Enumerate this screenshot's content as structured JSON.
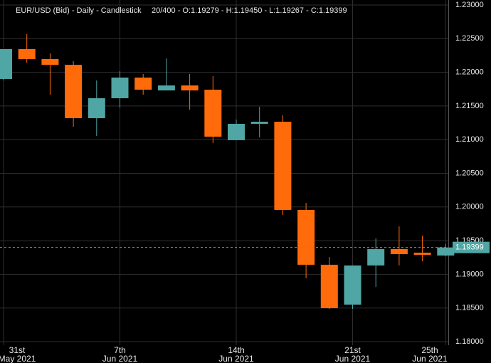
{
  "chart_data": {
    "type": "candlestick",
    "title": "EUR/USD (Bid) - Daily - Candlestick",
    "subtitle": "20/400 - O:1.19279 - H:1.19450 - L:1.19267 - C:1.19399",
    "categories": [
      "31st",
      null,
      null,
      null,
      null,
      "7th",
      null,
      null,
      null,
      null,
      "14th",
      null,
      null,
      null,
      null,
      "21st",
      null,
      null,
      null,
      "25th"
    ],
    "category_sublabels": [
      "May 2021",
      null,
      null,
      null,
      null,
      "Jun 2021",
      null,
      null,
      null,
      null,
      "Jun 2021",
      null,
      null,
      null,
      null,
      "Jun 2021",
      null,
      null,
      null,
      "Jun 2021"
    ],
    "open": [
      1.21901,
      1.22345,
      1.22197,
      1.22112,
      1.21319,
      1.21615,
      1.21922,
      1.21731,
      1.21805,
      1.21742,
      1.20992,
      1.21235,
      1.21266,
      1.19956,
      1.19142,
      1.1855,
      1.19131,
      1.19374,
      1.19321,
      1.19279
    ],
    "high": [
      1.22345,
      1.22567,
      1.22281,
      1.22165,
      1.21879,
      1.22017,
      1.21975,
      1.22207,
      1.21975,
      1.21943,
      1.21298,
      1.21488,
      1.21361,
      1.20061,
      1.19258,
      1.19131,
      1.19533,
      1.19712,
      1.19575,
      1.1945
    ],
    "low": [
      1.21879,
      1.22144,
      1.21668,
      1.21192,
      1.21055,
      1.21478,
      1.21668,
      1.21731,
      1.21446,
      1.20949,
      1.20992,
      1.21034,
      1.19882,
      1.18941,
      1.18486,
      1.18486,
      1.18814,
      1.19131,
      1.19195,
      1.19267
    ],
    "close": [
      1.22345,
      1.22197,
      1.22112,
      1.21319,
      1.21615,
      1.21922,
      1.21742,
      1.21805,
      1.21731,
      1.21044,
      1.21235,
      1.21266,
      1.19956,
      1.19142,
      1.18497,
      1.19131,
      1.19374,
      1.193,
      1.1929,
      1.19399
    ],
    "up_color": "#4fa6a4",
    "down_color": "#ff6a0a",
    "ylim": [
      1.17947,
      1.23074
    ],
    "yticks": [
      {
        "value": 1.18,
        "label": "1.18000"
      },
      {
        "value": 1.185,
        "label": "1.18500"
      },
      {
        "value": 1.19,
        "label": "1.19000"
      },
      {
        "value": 1.195,
        "label": "1.19500"
      },
      {
        "value": 1.2,
        "label": "1.20000"
      },
      {
        "value": 1.205,
        "label": "1.20500"
      },
      {
        "value": 1.21,
        "label": "1.21000"
      },
      {
        "value": 1.215,
        "label": "1.21500"
      },
      {
        "value": 1.22,
        "label": "1.22000"
      },
      {
        "value": 1.225,
        "label": "1.22500"
      },
      {
        "value": 1.23,
        "label": "1.23000"
      }
    ],
    "last_price": {
      "value": 1.19399,
      "label": "1.19399"
    },
    "grid": true
  }
}
